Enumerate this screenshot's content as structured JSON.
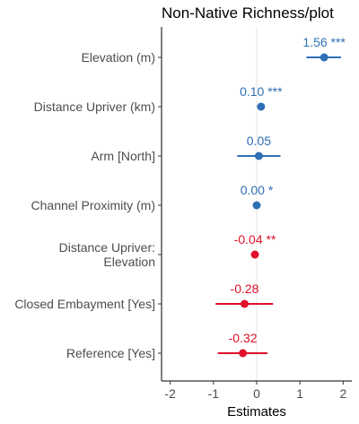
{
  "chart_data": {
    "type": "forest",
    "title": "Non-Native Richness/plot",
    "xlabel": "Estimates",
    "ylabel": "",
    "xlim": [
      -2.2,
      2.2
    ],
    "xticks": [
      -2,
      -1,
      0,
      1,
      2
    ],
    "xtick_labels": [
      "-2",
      "-1",
      "0",
      "1",
      "2"
    ],
    "grid": "vertical line at 0",
    "colors": {
      "positive": "#2e6fb5",
      "negative": "#e0102a"
    },
    "terms": [
      {
        "label_lines": [
          "Elevation (m)"
        ],
        "estimate": 1.56,
        "ci": [
          1.15,
          1.95
        ],
        "label": "1.56 ***",
        "sign": "positive"
      },
      {
        "label_lines": [
          "Distance Upriver (km)"
        ],
        "estimate": 0.1,
        "ci": [
          0.07,
          0.13
        ],
        "label": "0.10 ***",
        "sign": "positive"
      },
      {
        "label_lines": [
          "Arm [North]"
        ],
        "estimate": 0.05,
        "ci": [
          -0.45,
          0.55
        ],
        "label": "0.05",
        "sign": "positive"
      },
      {
        "label_lines": [
          "Channel Proximity (m)"
        ],
        "estimate": 0.0,
        "ci": [
          -0.02,
          0.02
        ],
        "label": "0.00 *",
        "sign": "positive"
      },
      {
        "label_lines": [
          "Distance Upriver:",
          "Elevation"
        ],
        "estimate": -0.04,
        "ci": [
          -0.07,
          -0.01
        ],
        "label": "-0.04 **",
        "sign": "negative"
      },
      {
        "label_lines": [
          "Closed Embayment [Yes]"
        ],
        "estimate": -0.28,
        "ci": [
          -0.95,
          0.38
        ],
        "label": "-0.28",
        "sign": "negative"
      },
      {
        "label_lines": [
          "Reference [Yes]"
        ],
        "estimate": -0.32,
        "ci": [
          -0.9,
          0.25
        ],
        "label": "-0.32",
        "sign": "negative"
      }
    ]
  }
}
